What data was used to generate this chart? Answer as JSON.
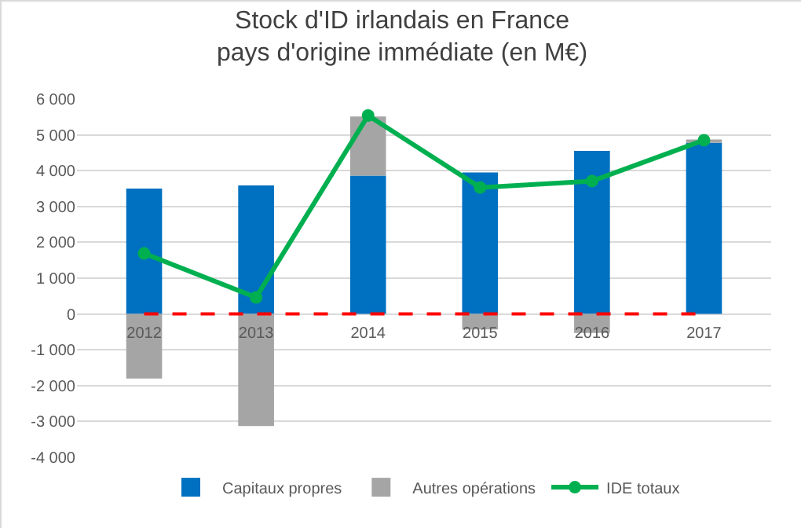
{
  "chart_data": {
    "type": "bar",
    "title": "Stock d'ID irlandais en France\npays d'origine immédiate (en M€)",
    "categories": [
      "2012",
      "2013",
      "2014",
      "2015",
      "2016",
      "2017"
    ],
    "stacked": true,
    "series": [
      {
        "name": "Capitaux propres",
        "color": "#0070c0",
        "values": [
          3500,
          3590,
          3860,
          3950,
          4550,
          4780
        ]
      },
      {
        "name": "Autres opérations",
        "color": "#a5a5a5",
        "values": [
          -1800,
          -3130,
          1650,
          -430,
          -530,
          90
        ]
      },
      {
        "name": "IDE totaux",
        "type": "line",
        "color": "#00b050",
        "marker": "circle",
        "values": [
          1690,
          460,
          5540,
          3530,
          3710,
          4850
        ]
      }
    ],
    "ylim": [
      -4000,
      6000
    ],
    "yticks": [
      {
        "value": -4000,
        "label": "-4 000"
      },
      {
        "value": -3000,
        "label": "-3 000"
      },
      {
        "value": -2000,
        "label": "-2 000"
      },
      {
        "value": -1000,
        "label": "-1 000"
      },
      0,
      {
        "value": 1000,
        "label": "1 000"
      },
      {
        "value": 2000,
        "label": "2 000"
      },
      {
        "value": 3000,
        "label": "3 000"
      },
      {
        "value": 4000,
        "label": "4 000"
      },
      {
        "value": 5000,
        "label": "5 000"
      },
      {
        "value": 6000,
        "label": "6 000"
      }
    ],
    "ref_lines": [
      {
        "axis": "y",
        "value": 0,
        "color": "#ff0000",
        "line_style": "dashed"
      }
    ],
    "grid": "y",
    "legend": "bottom"
  }
}
